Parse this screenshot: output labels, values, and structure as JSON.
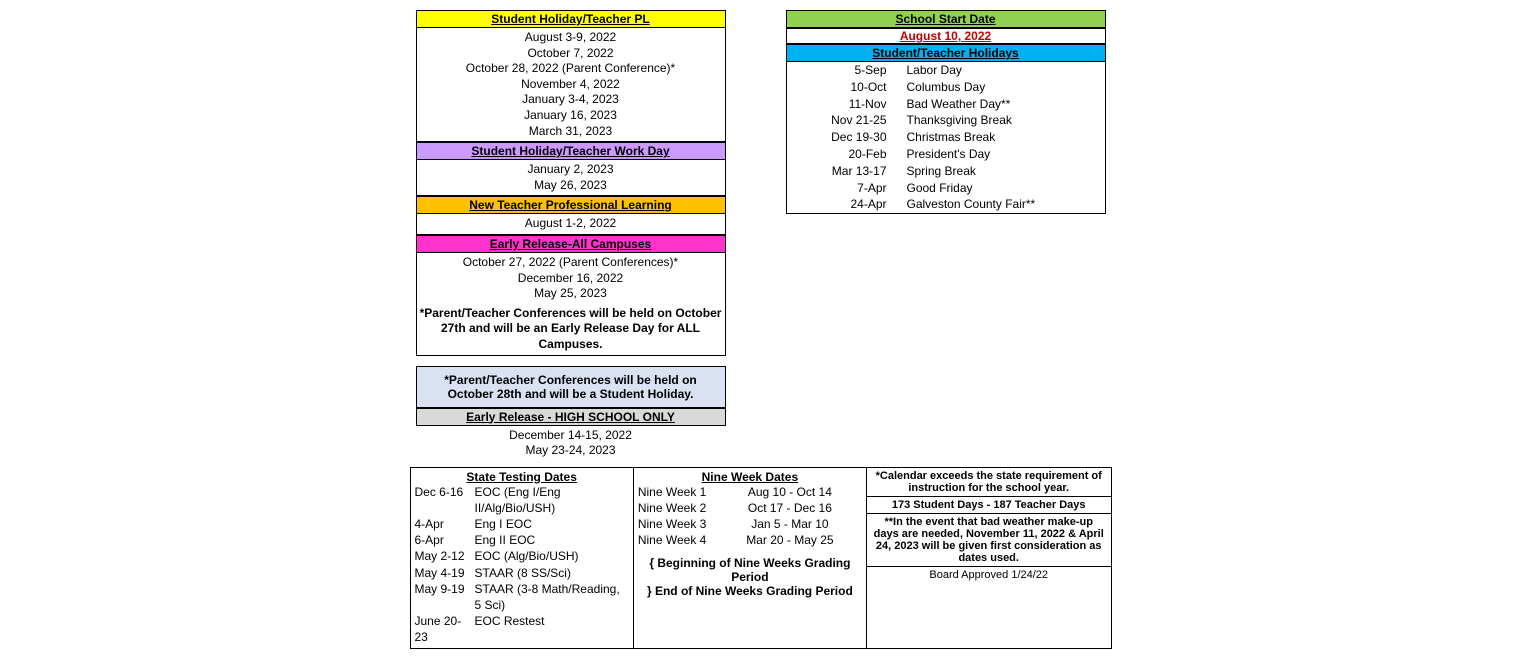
{
  "left": {
    "teacher_pl": {
      "header": "Student Holiday/Teacher PL",
      "items": [
        "August 3-9, 2022",
        "October 7, 2022",
        "October 28, 2022 (Parent Conference)*",
        "November 4, 2022",
        "January 3-4, 2023",
        "January 16, 2023",
        "March 31, 2023"
      ]
    },
    "work_day": {
      "header": "Student Holiday/Teacher Work Day",
      "items": [
        "January 2, 2023",
        "May 26, 2023"
      ]
    },
    "new_teacher": {
      "header": "New Teacher Professional Learning",
      "items": [
        "August 1-2, 2022"
      ]
    },
    "early_all": {
      "header": "Early Release-All Campuses",
      "items": [
        "October 27, 2022 (Parent Conferences)*",
        "December 16, 2022",
        "May 25, 2023"
      ],
      "note1": "*Parent/Teacher Conferences will be held on October 27th and will be an Early Release Day for ALL Campuses."
    },
    "conf_note": "*Parent/Teacher Conferences will be held on October 28th and will be a Student Holiday.",
    "early_hs": {
      "header": "Early Release - HIGH SCHOOL ONLY",
      "items": [
        "December 14-15, 2022",
        "May 23-24, 2023"
      ]
    }
  },
  "right": {
    "start_header": "School Start Date",
    "start_date": "August 10, 2022",
    "holidays_header": "Student/Teacher Holidays",
    "holidays": [
      {
        "d": "5-Sep",
        "n": "Labor Day"
      },
      {
        "d": "10-Oct",
        "n": "Columbus Day"
      },
      {
        "d": "11-Nov",
        "n": "Bad Weather Day**"
      },
      {
        "d": "Nov 21-25",
        "n": "Thanksgiving Break"
      },
      {
        "d": "Dec 19-30",
        "n": "Christmas Break"
      },
      {
        "d": "20-Feb",
        "n": "President's Day"
      },
      {
        "d": "Mar 13-17",
        "n": "Spring Break"
      },
      {
        "d": "7-Apr",
        "n": "Good Friday"
      },
      {
        "d": "24-Apr",
        "n": "Galveston County Fair**"
      }
    ]
  },
  "bottom": {
    "testing_header": "State Testing Dates",
    "testing": [
      {
        "d": "Dec 6-16",
        "n": "EOC (Eng I/Eng II/Alg/Bio/USH)"
      },
      {
        "d": "4-Apr",
        "n": "Eng I EOC"
      },
      {
        "d": "6-Apr",
        "n": "Eng II EOC"
      },
      {
        "d": "May 2-12",
        "n": "EOC (Alg/Bio/USH)"
      },
      {
        "d": "May 4-19",
        "n": "STAAR (8 SS/Sci)"
      },
      {
        "d": "May 9-19",
        "n": "STAAR (3-8 Math/Reading, 5 Sci)"
      },
      {
        "d": "June 20-23",
        "n": "EOC Restest"
      }
    ],
    "nineweek_header": "Nine Week Dates",
    "nineweeks": [
      {
        "l": "Nine Week 1",
        "r": "Aug 10 - Oct 14"
      },
      {
        "l": "Nine Week 2",
        "r": "Oct 17 - Dec 16"
      },
      {
        "l": "Nine Week 3",
        "r": "Jan 5 - Mar 10"
      },
      {
        "l": "Nine Week 4",
        "r": "Mar 20 - May 25"
      }
    ],
    "legend1": "{    Beginning of Nine Weeks Grading Period",
    "legend2": "}    End of Nine Weeks Grading Period",
    "notes": {
      "n1": "*Calendar exceeds the state requirement of instruction for the school year.",
      "n2": "173 Student Days - 187 Teacher Days",
      "n3": "**In the event that bad weather make-up days are needed, November 11, 2022 & April 24, 2023 will be given first consideration as dates used.",
      "n4": "Board Approved 1/24/22"
    }
  }
}
